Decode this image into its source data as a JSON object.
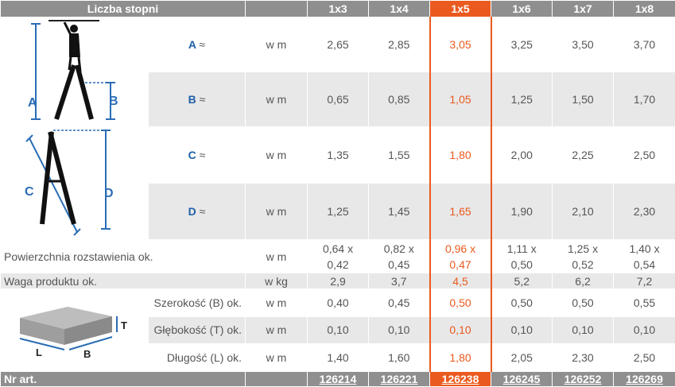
{
  "header": {
    "title": "Liczba stopni",
    "columns": [
      "1x3",
      "1x4",
      "1x5",
      "1x6",
      "1x7",
      "1x8"
    ],
    "highlight_index": 2,
    "highlight_color": "#ea5a1e"
  },
  "diagram_labels": {
    "a": "A",
    "b": "B",
    "c": "C",
    "d": "D",
    "t": "T",
    "l": "L",
    "bb": "B"
  },
  "rows": {
    "a": {
      "label": "A",
      "approx": "≈",
      "unit": "w m",
      "values": [
        "2,65",
        "2,85",
        "3,05",
        "3,25",
        "3,50",
        "3,70"
      ]
    },
    "b": {
      "label": "B",
      "approx": "≈",
      "unit": "w m",
      "values": [
        "0,65",
        "0,85",
        "1,05",
        "1,25",
        "1,50",
        "1,70"
      ]
    },
    "c": {
      "label": "C",
      "approx": "≈",
      "unit": "w m",
      "values": [
        "1,35",
        "1,55",
        "1,80",
        "2,00",
        "2,25",
        "2,50"
      ]
    },
    "d": {
      "label": "D",
      "approx": "≈",
      "unit": "w m",
      "values": [
        "1,25",
        "1,45",
        "1,65",
        "1,90",
        "2,10",
        "2,30"
      ]
    },
    "surface": {
      "label": "Powierzchnia rozstawienia ok.",
      "unit": "w m",
      "values": [
        [
          "0,64 x",
          "0,42"
        ],
        [
          "0,82 x",
          "0,45"
        ],
        [
          "0,96 x",
          "0,47"
        ],
        [
          "1,11 x",
          "0,50"
        ],
        [
          "1,25 x",
          "0,52"
        ],
        [
          "1,40 x",
          "0,54"
        ]
      ]
    },
    "weight": {
      "label": "Waga produktu ok.",
      "unit": "w kg",
      "values": [
        "2,9",
        "3,7",
        "4,5",
        "5,2",
        "6,2",
        "7,2"
      ]
    },
    "width": {
      "label": "Szerokość (B) ok.",
      "unit": "w m",
      "values": [
        "0,40",
        "0,45",
        "0,50",
        "0,50",
        "0,50",
        "0,55"
      ]
    },
    "depth": {
      "label": "Głębokość (T) ok.",
      "unit": "w m",
      "values": [
        "0,10",
        "0,10",
        "0,10",
        "0,10",
        "0,10",
        "0,10"
      ]
    },
    "length": {
      "label": "Długość (L) ok.",
      "unit": "w m",
      "values": [
        "1,40",
        "1,60",
        "1,80",
        "2,05",
        "2,30",
        "2,50"
      ]
    }
  },
  "footer": {
    "label": "Nr art.",
    "values": [
      "126214",
      "126221",
      "126238",
      "126245",
      "126252",
      "126269"
    ]
  }
}
